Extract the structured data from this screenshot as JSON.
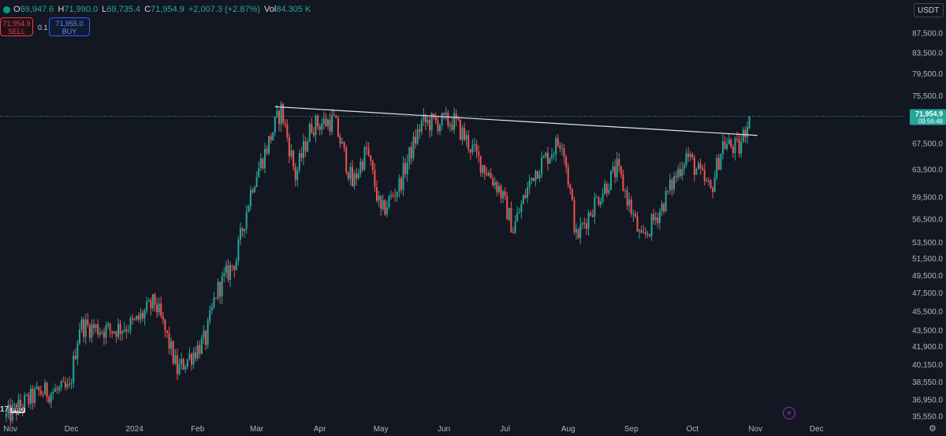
{
  "ohlc": {
    "o_label": "O",
    "o": "69,947.6",
    "h_label": "H",
    "h": "71,990.0",
    "l_label": "L",
    "l": "69,735.4",
    "c_label": "C",
    "c": "71,954.9",
    "change": "+2,007.3 (+2.87%)",
    "vol_label": "Vol",
    "vol": "84.305 K"
  },
  "trade": {
    "sell_price": "71,954.9",
    "sell_label": "SELL",
    "quantity": "0.1",
    "buy_price": "71,955.0",
    "buy_label": "BUY"
  },
  "currency": "USDT",
  "logo": {
    "text": "17",
    "badge": "PRO"
  },
  "icons": {
    "status": "green-dot-icon",
    "alert": "lightning-icon",
    "settings": "gear-icon"
  },
  "colors": {
    "up": "#26a69a",
    "down": "#ef5350",
    "background": "#131722",
    "trendline": "#e0e3eb",
    "price_tag": "#26a69a"
  },
  "chart_data": {
    "type": "candlestick",
    "x_ticks": [
      "Nov",
      "Dec",
      "2024",
      "Feb",
      "Mar",
      "Apr",
      "May",
      "Jun",
      "Jul",
      "Aug",
      "Sep",
      "Oct",
      "Nov",
      "Dec"
    ],
    "y_ticks": [
      "87,500.0",
      "83,500.0",
      "79,500.0",
      "75,500.0",
      "71,500.0",
      "67,500.0",
      "63,500.0",
      "59,500.0",
      "56,500.0",
      "53,500.0",
      "51,500.0",
      "49,500.0",
      "47,500.0",
      "45,500.0",
      "43,500.0",
      "41,900.0",
      "40,150.0",
      "38,550.0",
      "36,950.0",
      "35,550.0"
    ],
    "current_price": "71,954.9",
    "countdown": "09:56:48",
    "scale": "log",
    "grid": false,
    "series": [
      {
        "points": [
          [
            "Oct 30, 2023",
            35500
          ],
          [
            "Nov 15, 2023",
            37600
          ],
          [
            "Nov 30, 2023",
            37800
          ],
          [
            "Dec 5, 2023",
            44000
          ],
          [
            "Dec 20, 2023",
            43500
          ],
          [
            "Jan 1, 2024",
            44200
          ],
          [
            "Jan 11, 2024",
            46500
          ],
          [
            "Jan 22, 2024",
            39600
          ],
          [
            "Feb 5, 2024",
            42600
          ],
          [
            "Feb 10, 2024",
            47500
          ],
          [
            "Feb 20, 2024",
            51500
          ],
          [
            "Feb 28, 2024",
            61500
          ],
          [
            "Mar 5, 2024",
            66000
          ],
          [
            "Mar 13, 2024",
            73100
          ],
          [
            "Mar 20, 2024",
            62500
          ],
          [
            "Mar 28, 2024",
            70500
          ],
          [
            "Apr 8, 2024",
            71200
          ],
          [
            "Apr 17, 2024",
            61300
          ],
          [
            "Apr 24, 2024",
            66500
          ],
          [
            "May 1, 2024",
            57200
          ],
          [
            "May 10, 2024",
            61200
          ],
          [
            "May 21, 2024",
            70800
          ],
          [
            "Jun 6, 2024",
            71100
          ],
          [
            "Jun 18, 2024",
            65000
          ],
          [
            "Jun 28, 2024",
            60800
          ],
          [
            "Jul 5, 2024",
            55200
          ],
          [
            "Jul 15, 2024",
            63000
          ],
          [
            "Jul 29, 2024",
            68300
          ],
          [
            "Aug 5, 2024",
            54000
          ],
          [
            "Aug 14, 2024",
            58700
          ],
          [
            "Aug 25, 2024",
            63600
          ],
          [
            "Sep 6, 2024",
            53500
          ],
          [
            "Sep 16, 2024",
            58200
          ],
          [
            "Sep 28, 2024",
            65800
          ],
          [
            "Oct 10, 2024",
            60300
          ],
          [
            "Oct 16, 2024",
            67500
          ],
          [
            "Oct 24, 2024",
            66600
          ],
          [
            "Oct 29, 2024",
            71954.9
          ]
        ]
      }
    ],
    "trendline": [
      [
        "Mar 10, 2024",
        73600
      ],
      [
        "Nov 2, 2024",
        68800
      ]
    ]
  }
}
